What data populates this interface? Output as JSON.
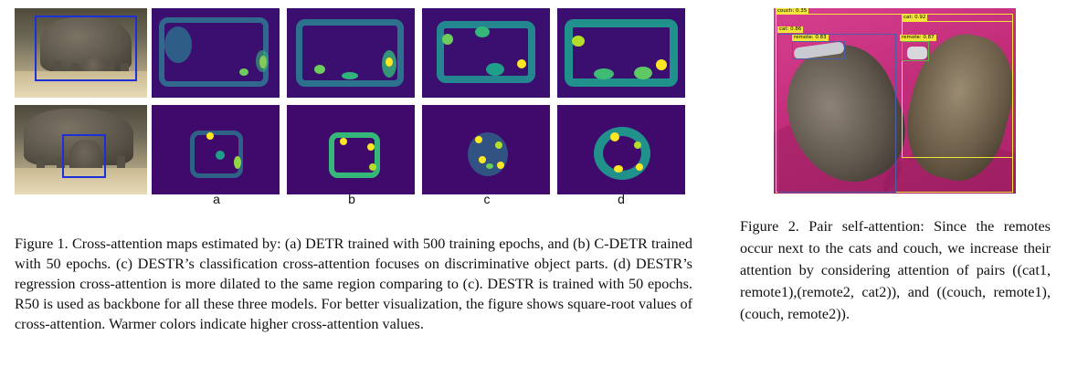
{
  "figure1": {
    "column_labels": [
      "a",
      "b",
      "c",
      "d"
    ],
    "caption": "Figure 1. Cross-attention maps estimated by: (a) DETR trained with 500 training epochs, and (b) C-DETR trained with 50 epochs. (c) DESTR’s classification cross-attention focuses on discriminative object parts. (d) DESTR’s regression cross-attention is more dilated to the same region comparing to (c). DESTR is trained with 50 epochs. R50 is used as backbone for all these three models. For better visualization, the figure shows square-root values of cross-attention. Warmer colors indicate higher cross-attention values.",
    "colormap": {
      "low": "#440154",
      "mid": "#21918c",
      "high": "#fde725"
    },
    "box_color": "#1d2fd6"
  },
  "figure2": {
    "detections": [
      {
        "label": "couch: 0.35",
        "color": "#f4e53b"
      },
      {
        "label": "cat: 0.92",
        "color": "#f4e53b"
      },
      {
        "label": "cat: 0.86",
        "color": "#4a5fa8"
      },
      {
        "label": "remote: 0.83",
        "color": "#4a5fa8"
      },
      {
        "label": "remote: 0.87",
        "color": "#5db04a"
      }
    ],
    "caption": "Figure 2. Pair self-attention: Since the remotes occur next to the cats and couch, we increase their attention by considering attention of pairs ((cat1, remote1),(remote2, cat2)), and ((couch, remote1),(couch, remote2))."
  }
}
